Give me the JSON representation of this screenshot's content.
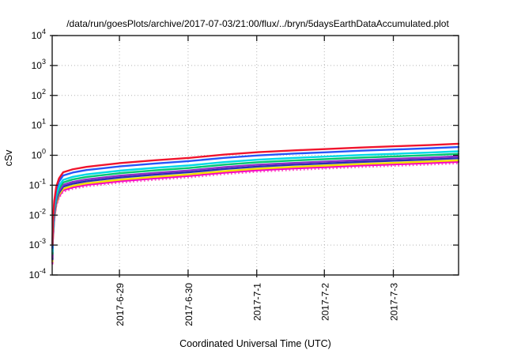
{
  "title": "/data/run/goesPlots/archive/2017-07-03/21:00/flux/../bryn/5daysEarthDataAccumulated.plot",
  "x_axis_label": "Coordinated Universal Time (UTC)",
  "y_axis_label": "cSv",
  "chart_data": {
    "type": "line",
    "title": "/data/run/goesPlots/archive/2017-07-03/21:00/flux/../bryn/5daysEarthDataAccumulated.plot",
    "xlabel": "Coordinated Universal Time (UTC)",
    "ylabel": "cSv",
    "y_scale": "log",
    "ylim": [
      0.0001,
      10000
    ],
    "y_tick_exponents": [
      -4,
      -3,
      -2,
      -1,
      0,
      1,
      2,
      3,
      4
    ],
    "x_range_days": 5.92,
    "x_ticks": [
      {
        "t_days": 0.98,
        "label": "2017-6-29"
      },
      {
        "t_days": 1.98,
        "label": "2017-6-30"
      },
      {
        "t_days": 2.98,
        "label": "2017-7-1"
      },
      {
        "t_days": 3.965,
        "label": "2017-7-2"
      },
      {
        "t_days": 4.97,
        "label": "2017-7-3"
      }
    ],
    "grid": true,
    "grid_style": "dotted",
    "legend": "none",
    "x_days": [
      0.004,
      0.01,
      0.03,
      0.06,
      0.1,
      0.16,
      0.3,
      0.5,
      1.0,
      1.5,
      2.0,
      2.5,
      3.0,
      3.5,
      4.0,
      4.5,
      5.0,
      5.5,
      5.92
    ],
    "series": [
      {
        "name": "red",
        "color": "#f0142d",
        "style": "solid",
        "width": 2.4,
        "values": [
          0.001,
          0.006,
          0.03,
          0.09,
          0.17,
          0.27,
          0.34,
          0.41,
          0.55,
          0.68,
          0.82,
          1.05,
          1.27,
          1.45,
          1.62,
          1.82,
          2.0,
          2.2,
          2.42
        ]
      },
      {
        "name": "blue",
        "color": "#2656f8",
        "style": "solid",
        "width": 2.4,
        "values": [
          0.0008,
          0.0047,
          0.023,
          0.07,
          0.133,
          0.211,
          0.265,
          0.32,
          0.429,
          0.53,
          0.64,
          0.819,
          0.991,
          1.131,
          1.264,
          1.42,
          1.56,
          1.716,
          1.888
        ]
      },
      {
        "name": "cyan",
        "color": "#00d8e6",
        "style": "solid",
        "width": 2.4,
        "values": [
          0.0006,
          0.0034,
          0.017,
          0.05,
          0.095,
          0.151,
          0.19,
          0.23,
          0.308,
          0.381,
          0.459,
          0.588,
          0.711,
          0.812,
          0.907,
          1.019,
          1.12,
          1.232,
          1.355
        ]
      },
      {
        "name": "green",
        "color": "#00c86e",
        "style": "solid",
        "width": 2.4,
        "values": [
          0.0005,
          0.0028,
          0.014,
          0.041,
          0.078,
          0.124,
          0.156,
          0.189,
          0.253,
          0.313,
          0.377,
          0.483,
          0.584,
          0.667,
          0.745,
          0.837,
          0.92,
          1.012,
          1.113
        ]
      },
      {
        "name": "purple",
        "color": "#8a2fc8",
        "style": "solid",
        "width": 2.4,
        "values": [
          0.0004,
          0.0023,
          0.011,
          0.034,
          0.065,
          0.103,
          0.129,
          0.156,
          0.209,
          0.258,
          0.312,
          0.399,
          0.483,
          0.551,
          0.616,
          0.692,
          0.76,
          0.836,
          0.92
        ]
      },
      {
        "name": "navy",
        "color": "#2a2fb4",
        "style": "solid",
        "width": 2.4,
        "values": [
          0.00033,
          0.002,
          0.0099,
          0.03,
          0.056,
          0.089,
          0.112,
          0.135,
          0.182,
          0.224,
          0.271,
          0.347,
          0.419,
          0.479,
          0.535,
          0.601,
          0.66,
          0.726,
          0.799
        ]
      },
      {
        "name": "yellow",
        "color": "#f0e000",
        "style": "solid",
        "width": 2.4,
        "values": [
          0.00028,
          0.0017,
          0.0084,
          0.025,
          0.048,
          0.076,
          0.095,
          0.115,
          0.154,
          0.19,
          0.23,
          0.294,
          0.356,
          0.406,
          0.454,
          0.51,
          0.56,
          0.616,
          0.678
        ]
      },
      {
        "name": "magenta",
        "color": "#f500c8",
        "style": "solid",
        "width": 2.4,
        "values": [
          0.00025,
          0.0015,
          0.0075,
          0.0225,
          0.0425,
          0.0675,
          0.085,
          0.1025,
          0.1375,
          0.17,
          0.205,
          0.2625,
          0.3175,
          0.3625,
          0.405,
          0.455,
          0.5,
          0.55,
          0.605
        ]
      },
      {
        "name": "pink-dotted",
        "color": "#ff5ac3",
        "style": "dotted",
        "width": 2.0,
        "values": [
          0.00022,
          0.0013,
          0.0066,
          0.0198,
          0.0374,
          0.0594,
          0.0748,
          0.0902,
          0.121,
          0.1496,
          0.1804,
          0.231,
          0.2794,
          0.319,
          0.3564,
          0.4004,
          0.44,
          0.484,
          0.5324
        ]
      }
    ],
    "axis_color": "#1a1a1a",
    "grid_color": "#b4b4b4"
  }
}
